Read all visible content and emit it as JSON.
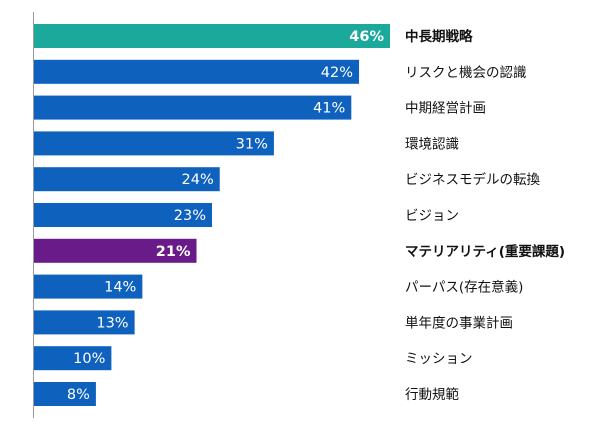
{
  "chart_data": {
    "type": "bar",
    "orientation": "horizontal",
    "unit": "%",
    "categories": [
      "中長期戦略",
      "リスクと機会の認識",
      "中期経営計画",
      "環境認識",
      "ビジネスモデルの転換",
      "ビジョン",
      "マテリアリティ(重要課題)",
      "パーパス(存在意義)",
      "単年度の事業計画",
      "ミッション",
      "行動規範"
    ],
    "values": [
      46,
      42,
      41,
      31,
      24,
      23,
      21,
      14,
      13,
      10,
      8
    ],
    "value_labels": [
      "46%",
      "42%",
      "41%",
      "31%",
      "24%",
      "23%",
      "21%",
      "14%",
      "13%",
      "10%",
      "8%"
    ],
    "colors": [
      "#1aa99a",
      "#0f61be",
      "#0f61be",
      "#0f61be",
      "#0f61be",
      "#0f61be",
      "#6a1b8a",
      "#0f61be",
      "#0f61be",
      "#0f61be",
      "#0f61be"
    ],
    "highlighted": [
      true,
      false,
      false,
      false,
      false,
      false,
      true,
      false,
      false,
      false,
      false
    ],
    "xlim": [
      0,
      46
    ],
    "grid": false,
    "legend": "none"
  }
}
